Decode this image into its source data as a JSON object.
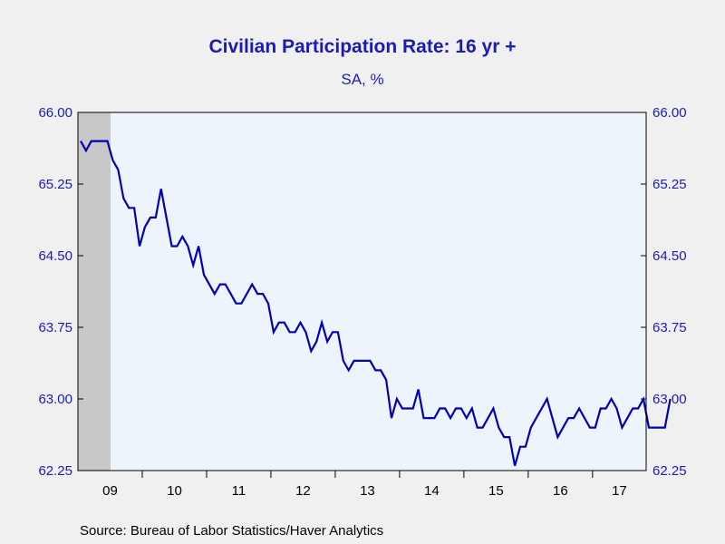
{
  "title": "Civilian Participation Rate: 16 yr +",
  "subtitle": "SA, %",
  "source": "Source:  Bureau of Labor Statistics/Haver Analytics",
  "colors": {
    "line": "#0000b4",
    "plot_bg": "#eef4fc",
    "recession": "#c8c8c8",
    "text": "#1c1cb4",
    "page_bg": "#f0f0f0"
  },
  "chart_data": {
    "type": "line",
    "title": "Civilian Participation Rate: 16 yr +",
    "subtitle": "SA, %",
    "xlabel": "",
    "ylabel": "",
    "ylim": [
      62.25,
      66.0
    ],
    "xlim": [
      "2009-01",
      "2017-10"
    ],
    "yticks": [
      "66.00",
      "65.25",
      "64.50",
      "63.75",
      "63.00",
      "62.25"
    ],
    "xtick_labels": [
      "09",
      "10",
      "11",
      "12",
      "13",
      "14",
      "15",
      "16",
      "17"
    ],
    "grid": false,
    "recession_shading": {
      "start": "2009-01",
      "end": "2009-06"
    },
    "series": [
      {
        "start": "2009-01",
        "frequency": "monthly",
        "values": [
          65.7,
          65.6,
          65.7,
          65.7,
          65.7,
          65.7,
          65.5,
          65.4,
          65.1,
          65.0,
          65.0,
          64.6,
          64.8,
          64.9,
          64.9,
          65.2,
          64.9,
          64.6,
          64.6,
          64.7,
          64.6,
          64.4,
          64.6,
          64.3,
          64.2,
          64.1,
          64.2,
          64.2,
          64.1,
          64.0,
          64.0,
          64.1,
          64.2,
          64.1,
          64.1,
          64.0,
          63.7,
          63.8,
          63.8,
          63.7,
          63.7,
          63.8,
          63.7,
          63.5,
          63.6,
          63.8,
          63.6,
          63.7,
          63.7,
          63.4,
          63.3,
          63.4,
          63.4,
          63.4,
          63.4,
          63.3,
          63.3,
          63.2,
          62.8,
          63.0,
          62.9,
          62.9,
          62.9,
          63.1,
          62.8,
          62.8,
          62.8,
          62.9,
          62.9,
          62.8,
          62.9,
          62.9,
          62.8,
          62.9,
          62.7,
          62.7,
          62.8,
          62.9,
          62.7,
          62.6,
          62.6,
          62.3,
          62.5,
          62.5,
          62.7,
          62.8,
          62.9,
          63.0,
          62.8,
          62.6,
          62.7,
          62.8,
          62.8,
          62.9,
          62.8,
          62.7,
          62.7,
          62.9,
          62.9,
          63.0,
          62.9,
          62.7,
          62.8,
          62.9,
          62.9,
          63.0,
          62.7,
          62.7,
          62.7,
          62.7,
          63.0
        ]
      }
    ]
  }
}
